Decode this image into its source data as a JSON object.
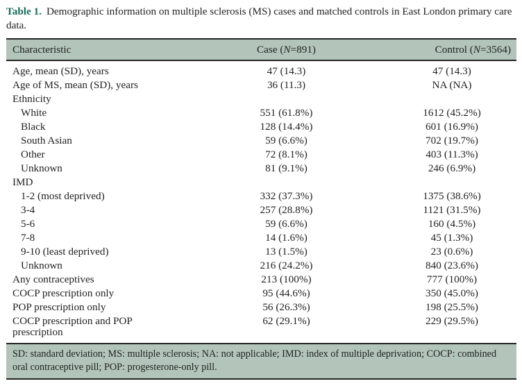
{
  "colors": {
    "band": "#b3c5ba",
    "accent": "#156c56",
    "rule": "#232323"
  },
  "caption": {
    "label": "Table 1.",
    "text": "Demographic information on multiple sclerosis (MS) cases and matched controls in East London primary care data."
  },
  "table": {
    "header": {
      "characteristic": "Characteristic",
      "case": {
        "pre": "Case (",
        "n": "N",
        "post": "=891)"
      },
      "control": {
        "pre": "Control (",
        "n": "N",
        "post": "=3564)"
      }
    },
    "rows": [
      {
        "label": "Age, mean (SD), years",
        "indent": false,
        "case": "47 (14.3)",
        "control": "47 (14.3)"
      },
      {
        "label": "Age of MS, mean (SD), years",
        "indent": false,
        "case": "36 (11.3)",
        "control": "NA (NA)"
      },
      {
        "label": "Ethnicity",
        "indent": false,
        "case": "",
        "control": ""
      },
      {
        "label": "White",
        "indent": true,
        "case": "551 (61.8%)",
        "control": "1612 (45.2%)"
      },
      {
        "label": "Black",
        "indent": true,
        "case": "128 (14.4%)",
        "control": "601 (16.9%)"
      },
      {
        "label": "South Asian",
        "indent": true,
        "case": "59 (6.6%)",
        "control": "702 (19.7%)"
      },
      {
        "label": "Other",
        "indent": true,
        "case": "72 (8.1%)",
        "control": "403 (11.3%)"
      },
      {
        "label": "Unknown",
        "indent": true,
        "case": "81 (9.1%)",
        "control": "246 (6.9%)"
      },
      {
        "label": "IMD",
        "indent": false,
        "case": "",
        "control": ""
      },
      {
        "label": "1-2 (most deprived)",
        "indent": true,
        "case": "332 (37.3%)",
        "control": "1375 (38.6%)"
      },
      {
        "label": "3-4",
        "indent": true,
        "case": "257 (28.8%)",
        "control": "1121 (31.5%)"
      },
      {
        "label": "5-6",
        "indent": true,
        "case": "59 (6.6%)",
        "control": "160 (4.5%)"
      },
      {
        "label": "7-8",
        "indent": true,
        "case": "14 (1.6%)",
        "control": "45 (1.3%)"
      },
      {
        "label": "9-10 (least deprived)",
        "indent": true,
        "case": "13 (1.5%)",
        "control": "23 (0.6%)"
      },
      {
        "label": "Unknown",
        "indent": true,
        "case": "216 (24.2%)",
        "control": "840 (23.6%)"
      },
      {
        "label": "Any contraceptives",
        "indent": false,
        "case": "213 (100%)",
        "control": "777 (100%)"
      },
      {
        "label": "COCP prescription only",
        "indent": false,
        "case": "95 (44.6%)",
        "control": "350 (45.0%)"
      },
      {
        "label": "POP prescription only",
        "indent": false,
        "case": "56 (26.3%)",
        "control": "198 (25.5%)"
      },
      {
        "label": "COCP prescription and POP\nprescription",
        "indent": false,
        "case": "62 (29.1%)",
        "control": "229 (29.5%)"
      }
    ]
  },
  "footnote": "SD: standard deviation; MS: multiple sclerosis; NA: not applicable; IMD: index of multiple deprivation; COCP: combined oral contraceptive pill; POP: progesterone-only pill."
}
